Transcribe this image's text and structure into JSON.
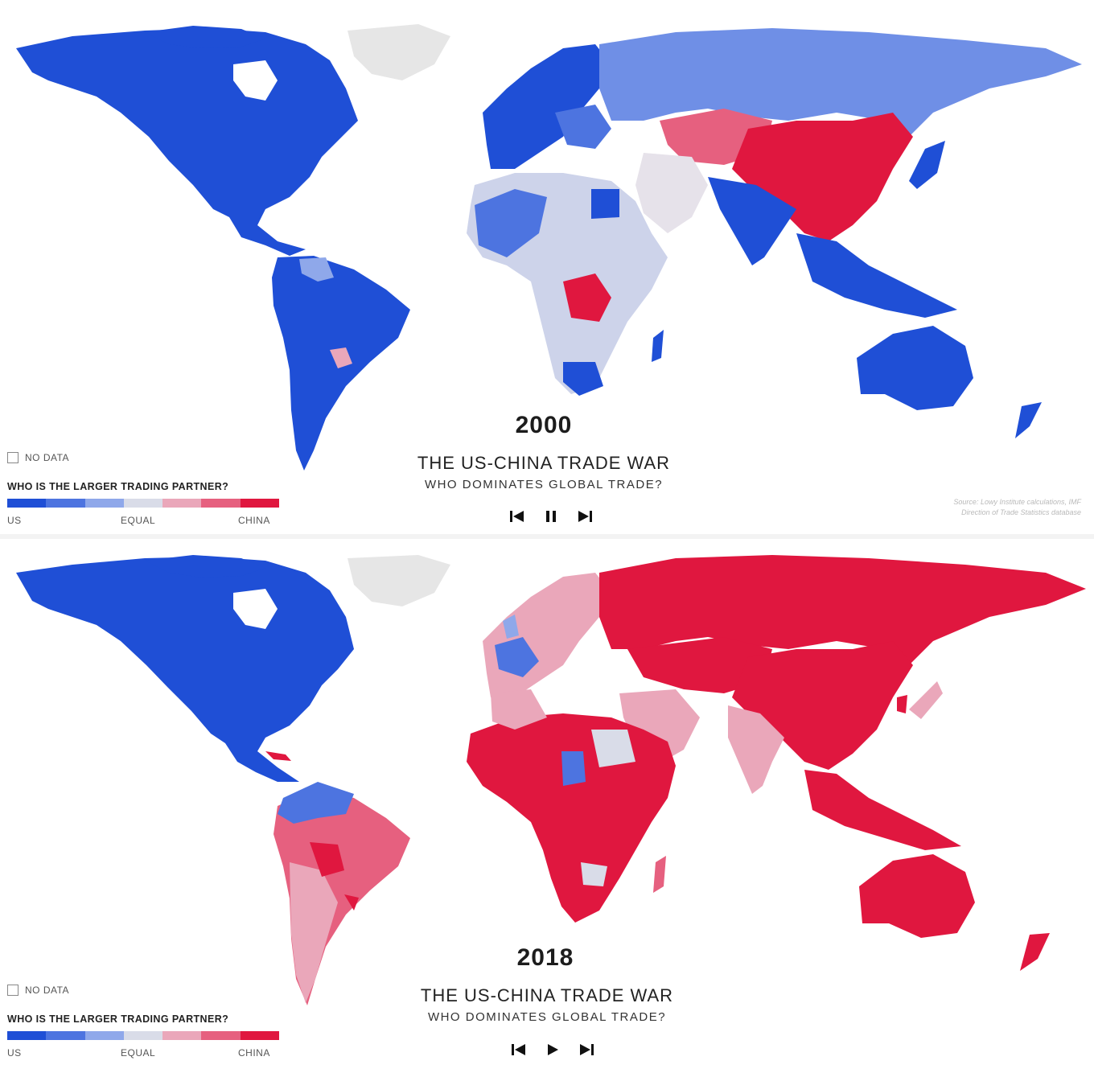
{
  "panels": [
    {
      "year": "2000",
      "title": "THE US-CHINA TRADE WAR",
      "subtitle": "WHO DOMINATES GLOBAL TRADE?",
      "legend": {
        "no_data": "NO DATA",
        "question": "WHO IS THE LARGER TRADING PARTNER?",
        "label_us": "US",
        "label_equal": "EQUAL",
        "label_china": "CHINA"
      },
      "source_line1": "Source: Lowy Institute calculations, IMF",
      "source_line2": "Direction of Trade Statistics database",
      "controls": [
        "skip-back",
        "pause",
        "skip-forward"
      ]
    },
    {
      "year": "2018",
      "title": "THE US-CHINA TRADE WAR",
      "subtitle": "WHO DOMINATES GLOBAL TRADE?",
      "legend": {
        "no_data": "NO DATA",
        "question": "WHO IS THE LARGER TRADING PARTNER?",
        "label_us": "US",
        "label_equal": "EQUAL",
        "label_china": "CHINA"
      },
      "controls": [
        "skip-back",
        "play",
        "skip-forward"
      ]
    }
  ],
  "colors": {
    "us_strong": "#1f4fd6",
    "us_mid": "#4d74e0",
    "us_light": "#8fa8ea",
    "equal": "#d9dce8",
    "china_light": "#eaa7ba",
    "china_mid": "#e6607f",
    "china_strong": "#e0173f",
    "no_data": "#e6e6e6"
  },
  "legend_scale": [
    "#1f4fd6",
    "#4d74e0",
    "#8fa8ea",
    "#d9dce8",
    "#eaa7ba",
    "#e6607f",
    "#e0173f"
  ]
}
